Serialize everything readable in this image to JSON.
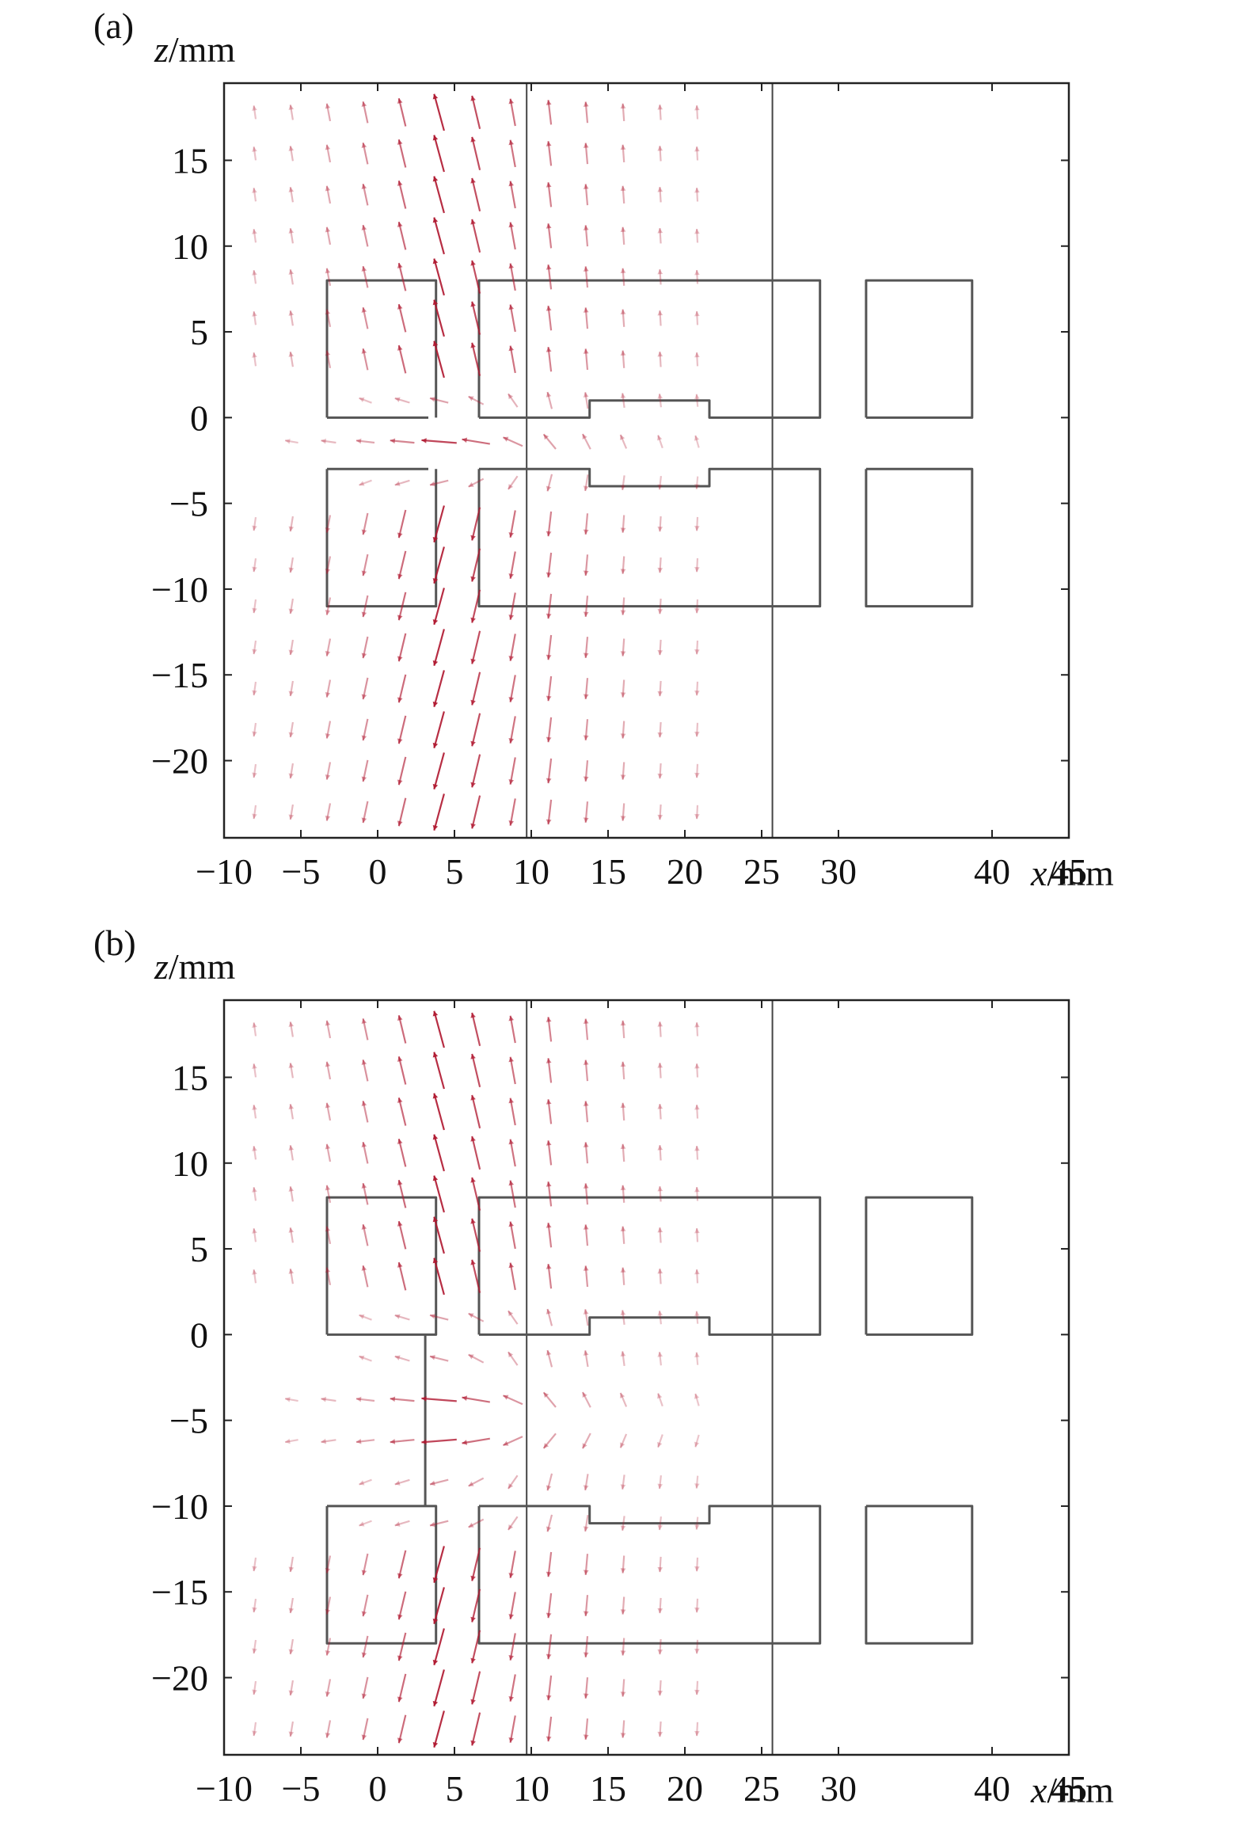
{
  "chart_data": [
    {
      "type": "vector field",
      "panel_label": "(a)",
      "xlabel_var": "x",
      "xlabel_unit": "/mm",
      "ylabel_var": "z",
      "ylabel_unit": "/mm",
      "xlim": [
        -10,
        45
      ],
      "ylim": [
        -24.5,
        19.5
      ],
      "xticks": [
        -10,
        -5,
        0,
        5,
        10,
        15,
        20,
        25,
        30,
        40,
        45
      ],
      "xtick_labels": [
        "−10",
        "−5",
        "0",
        "5",
        "10",
        "15",
        "20",
        "25",
        "30",
        "40",
        "45"
      ],
      "yticks": [
        15,
        10,
        5,
        0,
        -5,
        -10,
        -15,
        -20
      ],
      "ytick_labels": [
        "15",
        "10",
        "5",
        "0",
        "−5",
        "−10",
        "−15",
        "−20"
      ],
      "vertical_lines_x": [
        9.7,
        25.7
      ],
      "electrodes": [
        {
          "id": "ring1-top",
          "points": [
            [
              -3.3,
              0
            ],
            [
              -3.3,
              8
            ],
            [
              3.8,
              8
            ],
            [
              3.8,
              0
            ]
          ],
          "round": 1
        },
        {
          "id": "ring1-bottom",
          "points": [
            [
              -3.3,
              -3
            ],
            [
              -3.3,
              -11
            ],
            [
              3.8,
              -11
            ],
            [
              3.8,
              -3
            ]
          ],
          "round": 1
        },
        {
          "id": "ring1-inner-top",
          "points": [
            [
              -3.3,
              0
            ],
            [
              3.3,
              0
            ]
          ],
          "round": 0
        },
        {
          "id": "ring1-inner-bottom",
          "points": [
            [
              -3.3,
              -3
            ],
            [
              3.3,
              -3
            ]
          ],
          "round": 0
        },
        {
          "id": "ring2-top",
          "points": [
            [
              6.6,
              0
            ],
            [
              6.6,
              8
            ],
            [
              28.8,
              8
            ],
            [
              28.8,
              0
            ],
            [
              21.6,
              0
            ],
            [
              21.6,
              1
            ],
            [
              13.8,
              1
            ],
            [
              13.8,
              0
            ],
            [
              6.6,
              0
            ]
          ],
          "round": 0
        },
        {
          "id": "ring2-bottom",
          "points": [
            [
              6.6,
              -3
            ],
            [
              6.6,
              -11
            ],
            [
              28.8,
              -11
            ],
            [
              28.8,
              -3
            ],
            [
              21.6,
              -3
            ],
            [
              21.6,
              -4
            ],
            [
              13.8,
              -4
            ],
            [
              13.8,
              -3
            ],
            [
              6.6,
              -3
            ]
          ],
          "round": 0
        },
        {
          "id": "ring3-top",
          "points": [
            [
              31.8,
              0
            ],
            [
              31.8,
              8
            ],
            [
              38.7,
              8
            ],
            [
              38.7,
              0
            ],
            [
              31.8,
              0
            ]
          ],
          "round": 1
        },
        {
          "id": "ring3-bottom",
          "points": [
            [
              31.8,
              -3
            ],
            [
              31.8,
              -11
            ],
            [
              38.7,
              -11
            ],
            [
              38.7,
              -3
            ],
            [
              31.8,
              -3
            ]
          ],
          "round": 1
        }
      ],
      "field_center_z": -1.5,
      "field_pair_z": [
        -5,
        2
      ]
    },
    {
      "type": "vector field",
      "panel_label": "(b)",
      "xlabel_var": "x",
      "xlabel_unit": "/mm",
      "ylabel_var": "z",
      "ylabel_unit": "/mm",
      "xlim": [
        -10,
        45
      ],
      "ylim": [
        -24.5,
        19.5
      ],
      "xticks": [
        -10,
        -5,
        0,
        5,
        10,
        15,
        20,
        25,
        30,
        40,
        45
      ],
      "xtick_labels": [
        "−10",
        "−5",
        "0",
        "5",
        "10",
        "15",
        "20",
        "25",
        "30",
        "40",
        "45"
      ],
      "yticks": [
        15,
        10,
        5,
        0,
        -5,
        -10,
        -15,
        -20
      ],
      "ytick_labels": [
        "15",
        "10",
        "5",
        "0",
        "−5",
        "−10",
        "−15",
        "−20"
      ],
      "vertical_lines_x": [
        9.7,
        25.7
      ],
      "electrodes": [
        {
          "id": "ring1-top",
          "points": [
            [
              -3.3,
              0
            ],
            [
              -3.3,
              8
            ],
            [
              3.8,
              8
            ],
            [
              3.8,
              0
            ],
            [
              -3.3,
              0
            ]
          ],
          "round": 1
        },
        {
          "id": "ring1-bottom",
          "points": [
            [
              -3.3,
              -10
            ],
            [
              -3.3,
              -18
            ],
            [
              3.8,
              -18
            ],
            [
              3.8,
              -10
            ],
            [
              -3.3,
              -10
            ]
          ],
          "round": 1
        },
        {
          "id": "ring1-gap-wall",
          "points": [
            [
              3.1,
              0
            ],
            [
              3.1,
              -10
            ]
          ],
          "round": 0
        },
        {
          "id": "ring2-top",
          "points": [
            [
              6.6,
              0
            ],
            [
              6.6,
              8
            ],
            [
              28.8,
              8
            ],
            [
              28.8,
              0
            ],
            [
              21.6,
              0
            ],
            [
              21.6,
              1
            ],
            [
              13.8,
              1
            ],
            [
              13.8,
              0
            ],
            [
              6.6,
              0
            ]
          ],
          "round": 0
        },
        {
          "id": "ring2-bottom",
          "points": [
            [
              6.6,
              -10
            ],
            [
              6.6,
              -18
            ],
            [
              28.8,
              -18
            ],
            [
              28.8,
              -10
            ],
            [
              21.6,
              -10
            ],
            [
              21.6,
              -11
            ],
            [
              13.8,
              -11
            ],
            [
              13.8,
              -10
            ],
            [
              6.6,
              -10
            ]
          ],
          "round": 0
        },
        {
          "id": "ring3-top",
          "points": [
            [
              31.8,
              0
            ],
            [
              31.8,
              8
            ],
            [
              38.7,
              8
            ],
            [
              38.7,
              0
            ],
            [
              31.8,
              0
            ]
          ],
          "round": 1
        },
        {
          "id": "ring3-bottom",
          "points": [
            [
              31.8,
              -10
            ],
            [
              31.8,
              -18
            ],
            [
              38.7,
              -18
            ],
            [
              38.7,
              -10
            ],
            [
              31.8,
              -10
            ]
          ],
          "round": 1
        }
      ],
      "field_center_z": -5,
      "field_pair_z": [
        -12,
        2
      ]
    }
  ],
  "colors": {
    "arrow": "#b01830",
    "electrode": "#555555",
    "frame": "#222222",
    "vline": "#444444"
  }
}
